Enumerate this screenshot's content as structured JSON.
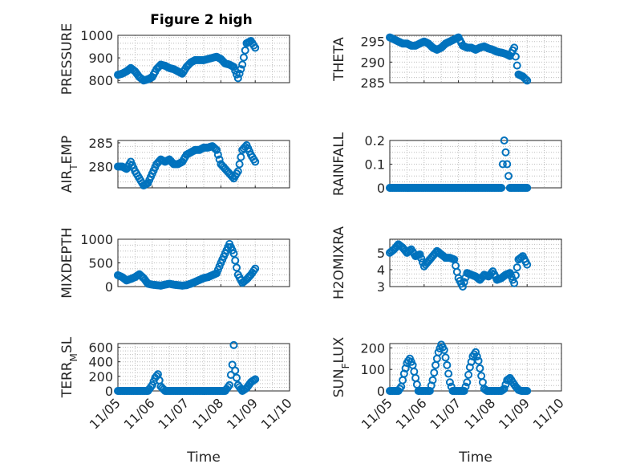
{
  "figure": {
    "title": "Figure 2 high"
  },
  "style": {
    "marker_color": "#0072BD",
    "axis_color": "#262626",
    "grid_color": "#bdbdbd"
  },
  "chart_data": [
    {
      "type": "scatter",
      "marker": "circle",
      "title": "Figure 2 high",
      "ylabel": "PRESSURE",
      "xlabel": "",
      "xlim": [
        "11/05",
        "11/10"
      ],
      "ylim": [
        790,
        1000
      ],
      "yticks": [
        800,
        900,
        1000
      ],
      "grid": true,
      "show_x_tick_labels": false,
      "x": [
        "11/05 00:00",
        "11/05 03:00",
        "11/05 06:00",
        "11/05 09:00",
        "11/05 12:00",
        "11/05 15:00",
        "11/05 18:00",
        "11/05 21:00",
        "11/06 00:00",
        "11/06 03:00",
        "11/06 06:00",
        "11/06 09:00",
        "11/06 12:00",
        "11/06 15:00",
        "11/06 18:00",
        "11/06 21:00",
        "11/07 00:00",
        "11/07 03:00",
        "11/07 06:00",
        "11/07 09:00",
        "11/07 12:00",
        "11/07 15:00",
        "11/07 18:00",
        "11/07 21:00",
        "11/08 00:00",
        "11/08 03:00",
        "11/08 06:00",
        "11/08 09:00",
        "11/08 12:00",
        "11/08 15:00",
        "11/08 18:00",
        "11/08 21:00",
        "11/09 00:00"
      ],
      "y": [
        825,
        830,
        840,
        855,
        840,
        815,
        800,
        805,
        815,
        850,
        870,
        865,
        855,
        850,
        840,
        830,
        860,
        880,
        890,
        890,
        890,
        895,
        900,
        905,
        895,
        875,
        870,
        860,
        810,
        870,
        965,
        975,
        945
      ]
    },
    {
      "type": "scatter",
      "marker": "circle",
      "ylabel": "THETA",
      "xlabel": "",
      "xlim": [
        "11/05",
        "11/10"
      ],
      "ylim": [
        285,
        296.5
      ],
      "yticks": [
        285,
        290,
        295
      ],
      "grid": true,
      "show_x_tick_labels": false,
      "x": [
        "11/05 00:00",
        "11/05 03:00",
        "11/05 06:00",
        "11/05 09:00",
        "11/05 12:00",
        "11/05 15:00",
        "11/05 18:00",
        "11/05 21:00",
        "11/06 00:00",
        "11/06 03:00",
        "11/06 06:00",
        "11/06 09:00",
        "11/06 12:00",
        "11/06 15:00",
        "11/06 18:00",
        "11/06 21:00",
        "11/07 00:00",
        "11/07 03:00",
        "11/07 06:00",
        "11/07 09:00",
        "11/07 12:00",
        "11/07 15:00",
        "11/07 18:00",
        "11/07 21:00",
        "11/08 00:00",
        "11/08 03:00",
        "11/08 06:00",
        "11/08 09:00",
        "11/08 12:00",
        "11/08 15:00",
        "11/08 18:00",
        "11/08 21:00",
        "11/09 00:00"
      ],
      "y": [
        296,
        295.5,
        295,
        294.5,
        294.5,
        294,
        294,
        294.5,
        295,
        294.5,
        293.5,
        293,
        293.5,
        294.5,
        295,
        295.5,
        296,
        294,
        293.5,
        293.5,
        293,
        293.5,
        293.8,
        293.3,
        293,
        292.5,
        292.3,
        292,
        291.5,
        293.5,
        287,
        286.5,
        285.5
      ]
    },
    {
      "type": "scatter",
      "marker": "circle",
      "ylabel": "AIR_TEMP",
      "xlabel": "",
      "xlim": [
        "11/05",
        "11/10"
      ],
      "ylim": [
        275.5,
        285.5
      ],
      "yticks": [
        280,
        285
      ],
      "grid": true,
      "show_x_tick_labels": false,
      "x": [
        "11/05 00:00",
        "11/05 03:00",
        "11/05 06:00",
        "11/05 09:00",
        "11/05 12:00",
        "11/05 15:00",
        "11/05 18:00",
        "11/05 21:00",
        "11/06 00:00",
        "11/06 03:00",
        "11/06 06:00",
        "11/06 09:00",
        "11/06 12:00",
        "11/06 15:00",
        "11/06 18:00",
        "11/06 21:00",
        "11/07 00:00",
        "11/07 03:00",
        "11/07 06:00",
        "11/07 09:00",
        "11/07 12:00",
        "11/07 15:00",
        "11/07 18:00",
        "11/07 21:00",
        "11/08 00:00",
        "11/08 03:00",
        "11/08 06:00",
        "11/08 09:00",
        "11/08 12:00",
        "11/08 15:00",
        "11/08 18:00",
        "11/08 21:00",
        "11/09 00:00"
      ],
      "y": [
        280,
        280,
        279.5,
        281,
        279,
        277.5,
        276,
        276.5,
        278.5,
        280.5,
        281.5,
        281,
        281.5,
        280.5,
        280.5,
        281,
        282.5,
        283,
        283.5,
        283.5,
        284,
        284,
        284.3,
        283.5,
        280.5,
        279.5,
        278.5,
        277.5,
        279,
        283.5,
        284.5,
        282.5,
        281
      ]
    },
    {
      "type": "scatter",
      "marker": "circle",
      "ylabel": "RAINFALL",
      "xlabel": "",
      "xlim": [
        "11/05",
        "11/10"
      ],
      "ylim": [
        0,
        0.2
      ],
      "yticks": [
        0,
        0.1,
        0.2
      ],
      "grid": true,
      "show_x_tick_labels": false,
      "x": [
        "11/05 00:00",
        "11/05 06:00",
        "11/05 12:00",
        "11/05 18:00",
        "11/06 00:00",
        "11/06 06:00",
        "11/06 12:00",
        "11/06 18:00",
        "11/07 00:00",
        "11/07 06:00",
        "11/07 12:00",
        "11/07 18:00",
        "11/08 00:00",
        "11/08 06:00",
        "11/08 08:00",
        "11/08 12:00",
        "11/08 18:00",
        "11/09 00:00"
      ],
      "y": [
        0,
        0,
        0,
        0,
        0,
        0,
        0,
        0,
        0,
        0,
        0,
        0,
        0,
        0,
        0.2,
        0,
        0,
        0
      ]
    },
    {
      "type": "scatter",
      "marker": "circle",
      "ylabel": "MIXDEPTH",
      "xlabel": "",
      "xlim": [
        "11/05",
        "11/10"
      ],
      "ylim": [
        0,
        1000
      ],
      "yticks": [
        0,
        500,
        1000
      ],
      "grid": true,
      "show_x_tick_labels": false,
      "x": [
        "11/05 00:00",
        "11/05 03:00",
        "11/05 06:00",
        "11/05 09:00",
        "11/05 12:00",
        "11/05 15:00",
        "11/05 18:00",
        "11/05 21:00",
        "11/06 00:00",
        "11/06 03:00",
        "11/06 06:00",
        "11/06 09:00",
        "11/06 12:00",
        "11/06 15:00",
        "11/06 18:00",
        "11/06 21:00",
        "11/07 00:00",
        "11/07 03:00",
        "11/07 06:00",
        "11/07 09:00",
        "11/07 12:00",
        "11/07 15:00",
        "11/07 18:00",
        "11/07 21:00",
        "11/08 00:00",
        "11/08 03:00",
        "11/08 06:00",
        "11/08 09:00",
        "11/08 12:00",
        "11/08 15:00",
        "11/08 18:00",
        "11/08 21:00",
        "11/09 00:00"
      ],
      "y": [
        240,
        200,
        130,
        160,
        200,
        260,
        180,
        60,
        40,
        30,
        20,
        40,
        60,
        40,
        30,
        20,
        30,
        60,
        100,
        140,
        180,
        200,
        240,
        280,
        500,
        700,
        900,
        700,
        250,
        80,
        150,
        250,
        380
      ]
    },
    {
      "type": "scatter",
      "marker": "circle",
      "ylabel": "H2OMIXRA",
      "xlabel": "",
      "xlim": [
        "11/05",
        "11/10"
      ],
      "ylim": [
        3,
        5.8
      ],
      "yticks": [
        3,
        4,
        5
      ],
      "grid": true,
      "show_x_tick_labels": false,
      "x": [
        "11/05 00:00",
        "11/05 03:00",
        "11/05 06:00",
        "11/05 09:00",
        "11/05 12:00",
        "11/05 15:00",
        "11/05 18:00",
        "11/05 21:00",
        "11/06 00:00",
        "11/06 03:00",
        "11/06 06:00",
        "11/06 09:00",
        "11/06 12:00",
        "11/06 15:00",
        "11/06 18:00",
        "11/06 21:00",
        "11/07 00:00",
        "11/07 03:00",
        "11/07 06:00",
        "11/07 09:00",
        "11/07 12:00",
        "11/07 15:00",
        "11/07 18:00",
        "11/07 21:00",
        "11/08 00:00",
        "11/08 03:00",
        "11/08 06:00",
        "11/08 09:00",
        "11/08 12:00",
        "11/08 15:00",
        "11/08 18:00",
        "11/08 21:00",
        "11/09 00:00"
      ],
      "y": [
        5,
        5.2,
        5.5,
        5.3,
        5,
        5.2,
        4.8,
        4.9,
        4.2,
        4.5,
        4.8,
        5.1,
        4.9,
        4.7,
        4.7,
        4.6,
        3.5,
        3,
        3.8,
        3.7,
        3.6,
        3.4,
        3.7,
        3.6,
        3.9,
        3.4,
        3.5,
        3.7,
        3.8,
        3.2,
        4.6,
        4.8,
        4.3
      ]
    },
    {
      "type": "scatter",
      "marker": "circle",
      "ylabel": "TERR_MSL",
      "xlabel": "Time",
      "xlim": [
        "11/05",
        "11/10"
      ],
      "ylim": [
        0,
        650
      ],
      "yticks": [
        0,
        200,
        400,
        600
      ],
      "xticks": [
        "11/05",
        "11/06",
        "11/07",
        "11/08",
        "11/09",
        "11/10"
      ],
      "grid": true,
      "show_x_tick_labels": true,
      "x": [
        "11/05 00:00",
        "11/05 06:00",
        "11/05 12:00",
        "11/05 18:00",
        "11/05 21:00",
        "11/06 00:00",
        "11/06 02:00",
        "11/06 04:00",
        "11/06 06:00",
        "11/06 09:00",
        "11/06 12:00",
        "11/06 18:00",
        "11/07 00:00",
        "11/07 06:00",
        "11/07 12:00",
        "11/07 18:00",
        "11/08 00:00",
        "11/08 03:00",
        "11/08 06:00",
        "11/08 08:00",
        "11/08 09:00",
        "11/08 10:00",
        "11/08 12:00",
        "11/08 15:00",
        "11/08 18:00",
        "11/08 21:00",
        "11/09 00:00"
      ],
      "y": [
        0,
        0,
        0,
        0,
        0,
        80,
        180,
        230,
        60,
        0,
        0,
        0,
        0,
        0,
        0,
        0,
        0,
        0,
        80,
        360,
        630,
        280,
        80,
        0,
        40,
        120,
        160
      ]
    },
    {
      "type": "scatter",
      "marker": "circle",
      "ylabel": "SUN_FLUX",
      "xlabel": "Time",
      "xlim": [
        "11/05",
        "11/10"
      ],
      "ylim": [
        0,
        220
      ],
      "yticks": [
        0,
        100,
        200
      ],
      "xticks": [
        "11/05",
        "11/06",
        "11/07",
        "11/08",
        "11/09",
        "11/10"
      ],
      "grid": true,
      "show_x_tick_labels": true,
      "x": [
        "11/05 00:00",
        "11/05 04:00",
        "11/05 06:00",
        "11/05 08:00",
        "11/05 10:00",
        "11/05 12:00",
        "11/05 14:00",
        "11/05 16:00",
        "11/05 18:00",
        "11/05 20:00",
        "11/06 00:00",
        "11/06 04:00",
        "11/06 06:00",
        "11/06 08:00",
        "11/06 10:00",
        "11/06 12:00",
        "11/06 14:00",
        "11/06 16:00",
        "11/06 18:00",
        "11/06 20:00",
        "11/07 00:00",
        "11/07 04:00",
        "11/07 06:00",
        "11/07 08:00",
        "11/07 10:00",
        "11/07 12:00",
        "11/07 14:00",
        "11/07 16:00",
        "11/07 18:00",
        "11/07 20:00",
        "11/08 00:00",
        "11/08 04:00",
        "11/08 06:00",
        "11/08 08:00",
        "11/08 10:00",
        "11/08 12:00",
        "11/08 14:00",
        "11/08 16:00",
        "11/08 18:00",
        "11/08 20:00",
        "11/09 00:00"
      ],
      "y": [
        0,
        0,
        0,
        20,
        80,
        130,
        150,
        120,
        60,
        0,
        0,
        0,
        50,
        120,
        180,
        215,
        190,
        120,
        40,
        0,
        0,
        0,
        40,
        110,
        160,
        180,
        140,
        70,
        10,
        0,
        0,
        0,
        0,
        10,
        50,
        60,
        40,
        20,
        5,
        0,
        0
      ]
    }
  ]
}
